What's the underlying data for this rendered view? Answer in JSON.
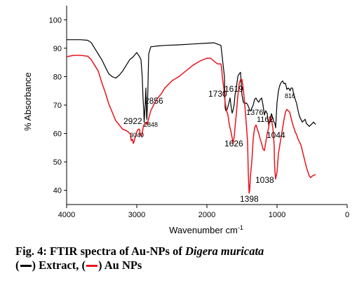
{
  "chart_data": {
    "type": "line",
    "xlabel": "Wavenumber cm",
    "xlabel_sup": "-1",
    "ylabel": "% Absorbance",
    "xlim": [
      4000,
      0
    ],
    "ylim": [
      35,
      105
    ],
    "x_reversed": true,
    "x_ticks": [
      4000,
      3000,
      2000,
      1000,
      0
    ],
    "y_ticks": [
      40,
      50,
      60,
      70,
      80,
      90,
      100
    ],
    "grid": false,
    "series": [
      {
        "name": "Extract",
        "color": "#000000",
        "x": [
          4000,
          3900,
          3800,
          3700,
          3650,
          3600,
          3550,
          3500,
          3450,
          3400,
          3350,
          3300,
          3250,
          3200,
          3150,
          3100,
          3050,
          3000,
          2960,
          2940,
          2922,
          2910,
          2900,
          2895,
          2880,
          2870,
          2860,
          2856,
          2845,
          2830,
          2800,
          2700,
          2600,
          2400,
          2200,
          2000,
          1900,
          1800,
          1750,
          1740,
          1730,
          1710,
          1690,
          1670,
          1650,
          1640,
          1630,
          1620,
          1610,
          1600,
          1580,
          1560,
          1540,
          1520,
          1500,
          1480,
          1460,
          1440,
          1420,
          1400,
          1390,
          1376,
          1360,
          1340,
          1320,
          1300,
          1280,
          1260,
          1240,
          1220,
          1200,
          1180,
          1162,
          1140,
          1120,
          1100,
          1080,
          1060,
          1044,
          1030,
          1020,
          1000,
          980,
          960,
          940,
          920,
          900,
          880,
          860,
          840,
          820,
          816,
          800,
          780,
          760,
          740,
          720,
          700,
          680,
          660,
          640,
          620,
          600,
          580,
          560,
          540,
          520,
          500,
          480,
          460,
          450
        ],
        "y": [
          93,
          93,
          93,
          92.8,
          92,
          90,
          88,
          86,
          83.5,
          81,
          80,
          79.5,
          80.5,
          82,
          84,
          86,
          87,
          88.5,
          87,
          86,
          80,
          72,
          68,
          64,
          70,
          76,
          66,
          65,
          72,
          88,
          90.5,
          90.8,
          91,
          91.2,
          91.5,
          91.8,
          91.9,
          91,
          80,
          69,
          68,
          68.5,
          70.5,
          72.5,
          68.5,
          67.2,
          68,
          69,
          70.5,
          73.5,
          76,
          80,
          81,
          81.5,
          73.5,
          71,
          70.5,
          70.8,
          70.2,
          69,
          68,
          68,
          69,
          70,
          72,
          72.5,
          71.5,
          71,
          72,
          72.5,
          70,
          66.5,
          68,
          67,
          63,
          64,
          67,
          65.5,
          64,
          63.5,
          62,
          71,
          75,
          77,
          78,
          78.5,
          77.5,
          77.7,
          75.5,
          76,
          75.5,
          75,
          76,
          76,
          73.5,
          72,
          70.5,
          68,
          66,
          65,
          64,
          64.5,
          65,
          63.5,
          63,
          62.5,
          63,
          63.5,
          64,
          63.5,
          63.2
        ]
      },
      {
        "name": "Au NPs",
        "color": "#e8141d",
        "x": [
          4000,
          3900,
          3800,
          3700,
          3650,
          3600,
          3550,
          3500,
          3450,
          3400,
          3350,
          3300,
          3250,
          3200,
          3150,
          3120,
          3100,
          3090,
          3080,
          3060,
          3050,
          3040,
          3030,
          3000,
          2980,
          2960,
          2950,
          2930,
          2922,
          2910,
          2900,
          2880,
          2860,
          2848,
          2840,
          2800,
          2750,
          2700,
          2650,
          2600,
          2500,
          2400,
          2300,
          2200,
          2100,
          2050,
          2000,
          1950,
          1900,
          1850,
          1800,
          1790,
          1780,
          1760,
          1750,
          1740,
          1720,
          1700,
          1680,
          1660,
          1640,
          1630,
          1626,
          1620,
          1610,
          1600,
          1580,
          1560,
          1540,
          1520,
          1500,
          1480,
          1460,
          1440,
          1420,
          1410,
          1398,
          1390,
          1380,
          1360,
          1340,
          1320,
          1300,
          1280,
          1260,
          1240,
          1220,
          1200,
          1180,
          1160,
          1140,
          1120,
          1100,
          1080,
          1060,
          1050,
          1040,
          1038,
          1030,
          1020,
          1000,
          980,
          960,
          940,
          920,
          900,
          880,
          860,
          840,
          820,
          800,
          780,
          760,
          740,
          720,
          700,
          680,
          660,
          640,
          620,
          600,
          580,
          560,
          540,
          520,
          500,
          480,
          460,
          450
        ],
        "y": [
          87,
          87.5,
          87.5,
          87.2,
          86,
          84,
          82,
          78,
          74.5,
          70.5,
          67.5,
          64.5,
          63,
          61.5,
          61,
          60.5,
          60,
          59.8,
          57.5,
          58,
          56.5,
          57,
          58,
          60.5,
          61.5,
          61.5,
          59.5,
          59,
          60,
          62,
          63,
          63.5,
          64,
          63.2,
          64.5,
          68,
          70.5,
          72.5,
          74,
          76,
          78.5,
          80,
          82,
          84,
          85.5,
          86,
          86.5,
          86.5,
          85.5,
          84.5,
          84.5,
          83,
          80,
          76,
          73,
          71,
          68,
          66.5,
          63,
          61,
          58.5,
          57,
          56.5,
          57.5,
          59,
          62,
          67,
          73,
          77.5,
          79,
          79,
          75.5,
          70,
          64,
          57,
          46,
          39,
          40,
          45,
          50,
          58,
          62,
          63,
          61.5,
          60,
          58,
          56.5,
          54.5,
          54,
          57,
          60,
          62,
          66,
          65,
          62,
          59,
          55.5,
          51,
          46.5,
          44,
          46.5,
          53,
          56,
          59,
          62,
          65,
          67.5,
          68.5,
          68,
          67.5,
          65.5,
          63.5,
          62,
          60.5,
          59.5,
          58,
          57,
          56,
          54,
          52,
          50,
          48,
          46.5,
          45,
          44.5,
          45,
          45.2,
          45.5,
          45.5
        ]
      }
    ],
    "annotations": [
      "2922",
      "2856",
      "2848",
      "3040",
      "1730",
      "1619",
      "1626",
      "1376",
      "1162",
      "816",
      "1044",
      "1038",
      "1398"
    ]
  },
  "caption": {
    "line1_bold": "Fig. 4: FTIR spectra of Au-NPs of ",
    "line1_italic": "Digera muricata",
    "open1": "(",
    "close1": ") Extract, (",
    "close2": ") Au NPs"
  }
}
